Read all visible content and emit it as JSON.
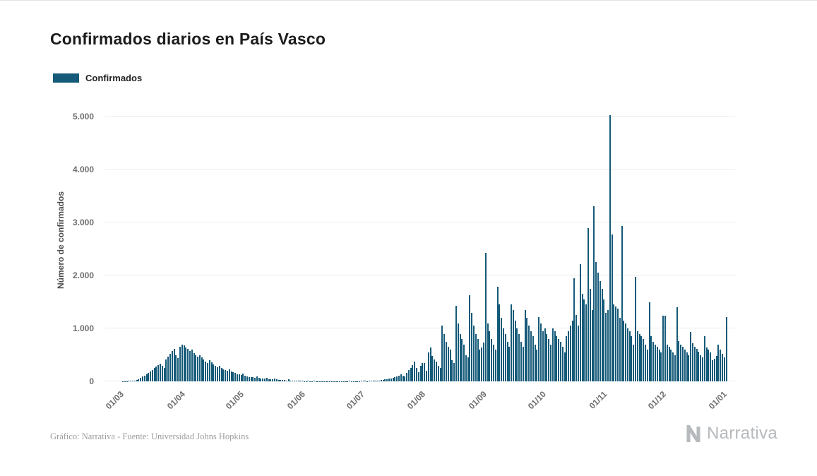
{
  "page": {
    "title": "Confirmados diarios en País Vasco",
    "footer_credit": "Gráfico: Narrativa - Fuente: Universidad Johns Hopkins",
    "brand": "Narrativa"
  },
  "legend": {
    "label": "Confirmados",
    "color": "#155a78"
  },
  "chart_data": {
    "type": "bar",
    "title": "Confirmados diarios en País Vasco",
    "series_name": "Confirmados",
    "xlabel": "",
    "ylabel": "Número de confirmados",
    "ylim": [
      0,
      5200
    ],
    "grid": true,
    "legend_position": "top-left",
    "bar_color": "#155a78",
    "start_date": "2020-03-01",
    "yticks": [
      {
        "value": 0,
        "label": "0"
      },
      {
        "value": 1000,
        "label": "1.000"
      },
      {
        "value": 2000,
        "label": "2.000"
      },
      {
        "value": 3000,
        "label": "3.000"
      },
      {
        "value": 4000,
        "label": "4.000"
      },
      {
        "value": 5000,
        "label": "5.000"
      }
    ],
    "xticks": [
      {
        "label": "01/03",
        "index": 0
      },
      {
        "label": "01/04",
        "index": 31
      },
      {
        "label": "01/05",
        "index": 61
      },
      {
        "label": "01/06",
        "index": 92
      },
      {
        "label": "01/07",
        "index": 122
      },
      {
        "label": "01/08",
        "index": 153
      },
      {
        "label": "01/09",
        "index": 184
      },
      {
        "label": "01/10",
        "index": 214
      },
      {
        "label": "01/11",
        "index": 245
      },
      {
        "label": "01/12",
        "index": 275
      },
      {
        "label": "01/01",
        "index": 306
      }
    ],
    "values": [
      2,
      3,
      5,
      8,
      12,
      15,
      20,
      28,
      45,
      65,
      90,
      110,
      140,
      160,
      190,
      220,
      250,
      280,
      310,
      340,
      290,
      260,
      420,
      470,
      520,
      570,
      620,
      500,
      440,
      660,
      700,
      680,
      640,
      610,
      570,
      600,
      540,
      500,
      470,
      490,
      450,
      410,
      380,
      350,
      400,
      360,
      320,
      290,
      270,
      300,
      260,
      230,
      210,
      195,
      225,
      185,
      170,
      155,
      140,
      130,
      120,
      150,
      110,
      95,
      85,
      80,
      75,
      70,
      90,
      65,
      60,
      55,
      50,
      70,
      45,
      40,
      38,
      60,
      35,
      30,
      28,
      25,
      22,
      20,
      45,
      18,
      15,
      12,
      10,
      9,
      8,
      7,
      6,
      5,
      8,
      4,
      6,
      7,
      3,
      4,
      6,
      5,
      4,
      3,
      5,
      4,
      6,
      4,
      5,
      3,
      4,
      6,
      5,
      4,
      6,
      8,
      5,
      6,
      4,
      5,
      6,
      8,
      10,
      8,
      6,
      9,
      12,
      10,
      8,
      14,
      18,
      22,
      28,
      35,
      45,
      60,
      50,
      65,
      80,
      95,
      110,
      130,
      105,
      90,
      160,
      210,
      260,
      310,
      380,
      260,
      170,
      300,
      350,
      350,
      200,
      550,
      640,
      480,
      420,
      380,
      300,
      250,
      1050,
      900,
      750,
      650,
      600,
      400,
      350,
      1430,
      1100,
      900,
      800,
      700,
      500,
      450,
      1630,
      1300,
      1050,
      900,
      800,
      600,
      640,
      740,
      2430,
      1100,
      950,
      800,
      700,
      600,
      1790,
      1450,
      1200,
      1000,
      900,
      750,
      650,
      1450,
      1350,
      1150,
      1000,
      900,
      750,
      650,
      1350,
      1200,
      1050,
      950,
      850,
      700,
      600,
      1220,
      1100,
      950,
      1000,
      900,
      800,
      700,
      1000,
      950,
      850,
      800,
      750,
      650,
      550,
      850,
      950,
      1050,
      1150,
      1950,
      1250,
      1050,
      2210,
      1650,
      1550,
      1450,
      2890,
      1750,
      1350,
      3310,
      2250,
      2050,
      1900,
      1750,
      1550,
      1300,
      1350,
      5030,
      2780,
      1450,
      1420,
      1380,
      1200,
      2930,
      1150,
      1100,
      1000,
      950,
      850,
      700,
      1980,
      950,
      900,
      850,
      800,
      700,
      600,
      1500,
      850,
      750,
      700,
      650,
      600,
      550,
      1240,
      1240,
      700,
      650,
      600,
      550,
      500,
      1400,
      760,
      700,
      650,
      600,
      550,
      500,
      930,
      720,
      660,
      620,
      560,
      500,
      450,
      850,
      640,
      600,
      550,
      400,
      430,
      480,
      700,
      600,
      520,
      460,
      1220
    ]
  }
}
